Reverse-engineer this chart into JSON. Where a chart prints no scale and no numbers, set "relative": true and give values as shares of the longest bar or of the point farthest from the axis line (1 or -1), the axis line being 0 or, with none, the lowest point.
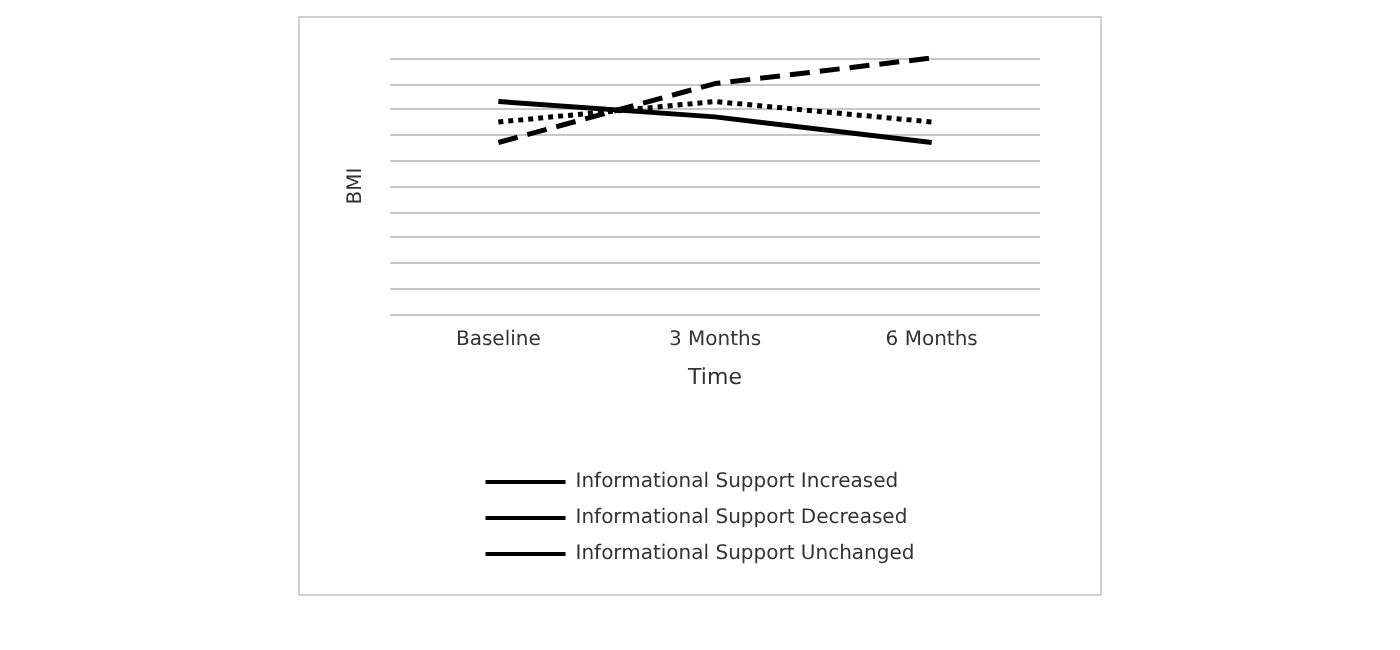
{
  "chart_data": {
    "type": "line",
    "xlabel": "Time",
    "ylabel": "BMI",
    "relative": true,
    "grid": "y",
    "legend": "bottom",
    "categories": [
      "Baseline",
      "3 Months",
      "6 Months"
    ],
    "series": [
      {
        "name": "Informational Support Increased",
        "color": "#000000",
        "line_style": "solid",
        "values": [
          0.83,
          0.77,
          0.67
        ]
      },
      {
        "name": "Informational Support Decreased",
        "color": "#000000",
        "line_style": "dashed",
        "values": [
          0.67,
          0.9,
          1
        ]
      },
      {
        "name": "Informational Support Unchanged",
        "color": "#000000",
        "line_style": "dotted",
        "values": [
          0.75,
          0.83,
          0.75
        ]
      }
    ]
  }
}
